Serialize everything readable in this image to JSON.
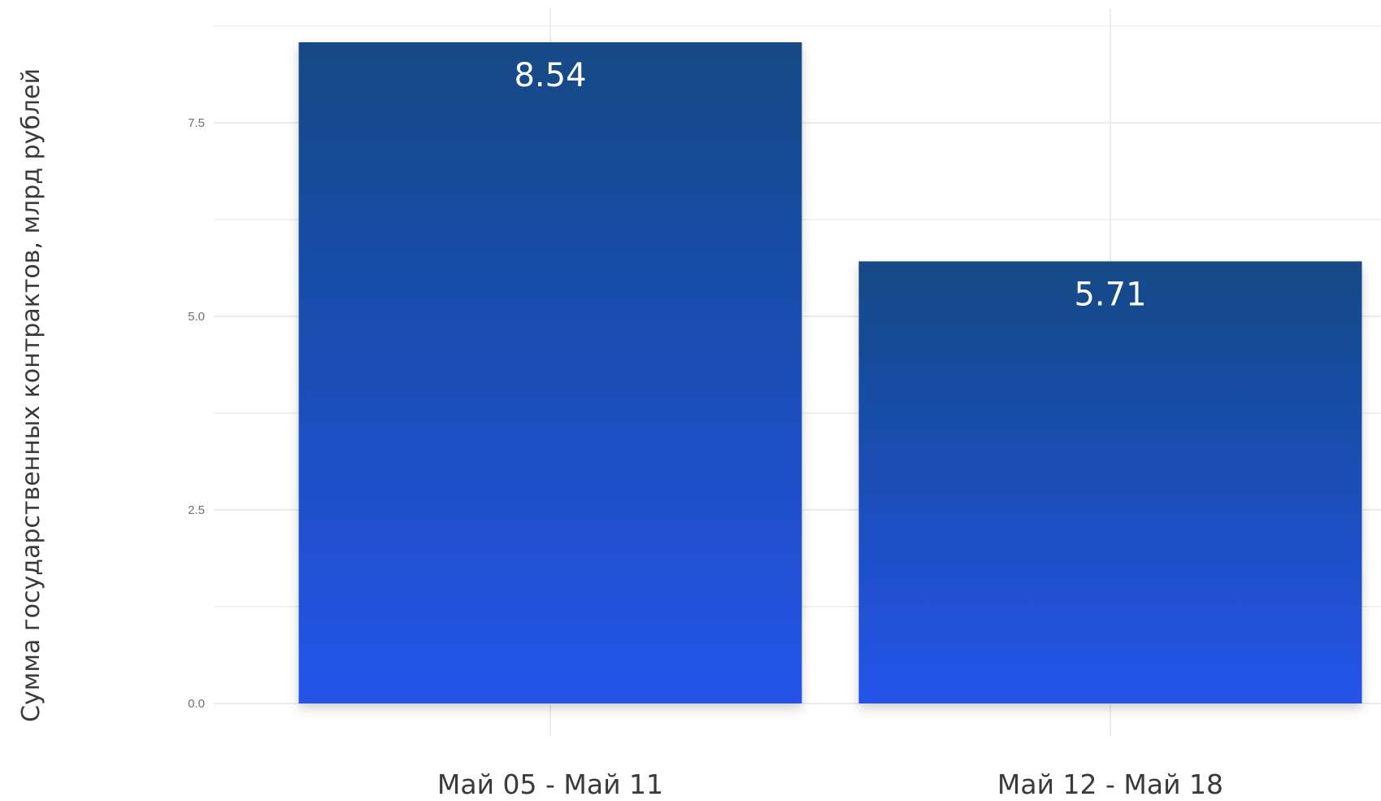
{
  "chart_data": {
    "type": "bar",
    "categories": [
      "Май 05 - Май 11",
      "Май 12 - Май 18"
    ],
    "values": [
      8.54,
      5.71
    ],
    "value_labels": [
      "8.54",
      "5.71"
    ],
    "title": "",
    "xlabel": "",
    "ylabel": "Сумма государственных контрактов, млрд рублей",
    "ylim": [
      0,
      8.9
    ],
    "y_ticks": [
      0,
      2.5,
      5,
      7.5
    ],
    "y_tick_labels": [
      "0.0",
      "2.5",
      "5.0",
      "7.5"
    ],
    "grid": true,
    "legend": "none",
    "colors": {
      "bar_top": "#124a85",
      "bar_bottom": "#2553ea",
      "grid": "#ececec",
      "value_label": "#ffffff"
    }
  }
}
